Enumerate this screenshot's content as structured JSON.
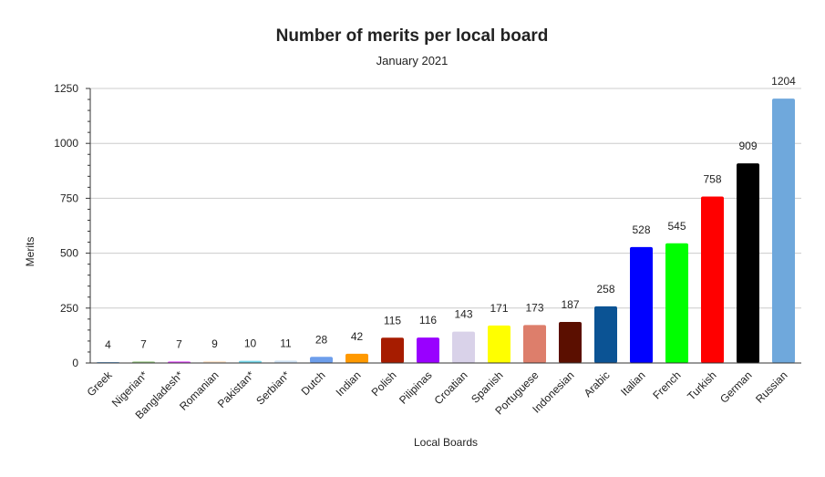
{
  "chart_data": {
    "type": "bar",
    "title": "Number of merits per local board",
    "subtitle": "January 2021",
    "xlabel": "Local Boards",
    "ylabel": "Merits",
    "ylim": [
      0,
      1250
    ],
    "yticks": [
      "0",
      "250",
      "500",
      "750",
      "1000",
      "1250"
    ],
    "ytick_values": [
      0,
      250,
      500,
      750,
      1000,
      1250
    ],
    "grid": true,
    "legend": "none",
    "categories": [
      "Greek",
      "Nigerian*",
      "Bangladesh*",
      "Romanian",
      "Pakistan*",
      "Serbian*",
      "Dutch",
      "Indian",
      "Polish",
      "Pilipinas",
      "Croatian",
      "Spanish",
      "Portuguese",
      "Indonesian",
      "Arabic",
      "Italian",
      "French",
      "Turkish",
      "German",
      "Russian"
    ],
    "values": [
      4,
      7,
      7,
      9,
      10,
      11,
      28,
      42,
      115,
      116,
      143,
      171,
      173,
      187,
      258,
      528,
      545,
      758,
      909,
      1204
    ],
    "labels": [
      "4",
      "7",
      "7",
      "9",
      "10",
      "11",
      "28",
      "42",
      "115",
      "116",
      "143",
      "171",
      "173",
      "187",
      "258",
      "528",
      "545",
      "758",
      "909",
      "1204"
    ],
    "colors": [
      "#6fa8dc",
      "#93c47d",
      "#e040fb",
      "#fce5cd",
      "#76d7ea",
      "#cfe2f3",
      "#6d9eeb",
      "#ff9900",
      "#a61c00",
      "#9900ff",
      "#d9d2e9",
      "#ffff00",
      "#dd7e6b",
      "#5b0f00",
      "#0b5394",
      "#0000ff",
      "#00ff00",
      "#ff0000",
      "#000000",
      "#6fa8dc"
    ]
  }
}
